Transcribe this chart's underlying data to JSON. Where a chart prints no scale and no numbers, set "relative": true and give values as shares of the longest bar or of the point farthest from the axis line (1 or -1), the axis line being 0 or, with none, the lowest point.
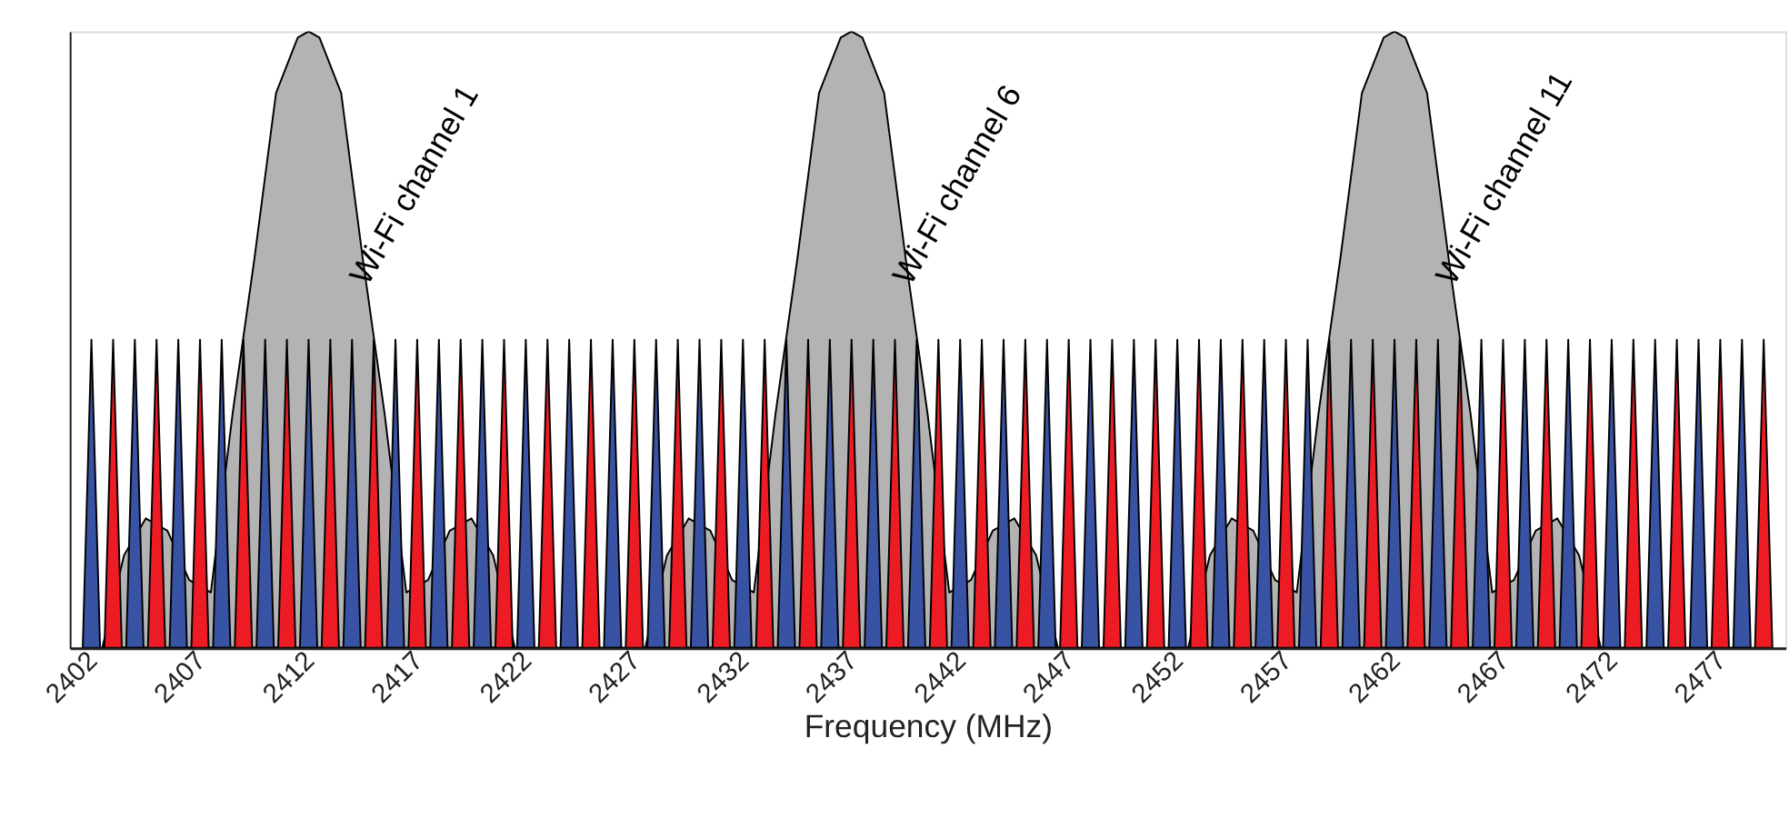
{
  "chart_data": {
    "type": "area",
    "relative": true,
    "xlabel": "Frequency (MHz)",
    "xlim": [
      2401,
      2480
    ],
    "xticks": [
      2402,
      2407,
      2412,
      2417,
      2422,
      2427,
      2432,
      2437,
      2442,
      2447,
      2452,
      2457,
      2462,
      2467,
      2472,
      2477
    ],
    "grid": false,
    "tick_labels": "x",
    "annotations": [
      {
        "text": "Wi-Fi channel 1",
        "x": 2415,
        "y": 0.58
      },
      {
        "text": "Wi-Fi channel 6",
        "x": 2440,
        "y": 0.58
      },
      {
        "text": "Wi-Fi channel 11",
        "x": 2465,
        "y": 0.58
      }
    ],
    "series": [
      {
        "color": "#b3b3b3",
        "x": [
          2402.5,
          2403.5,
          2404.5,
          2405.5,
          2406.5,
          2407.5,
          2408.5,
          2409.5,
          2410.5,
          2411.5,
          2412,
          2412.5,
          2413.5,
          2414.5,
          2415.5,
          2416.5,
          2417.5,
          2418.5,
          2419.5,
          2420.5,
          2421.5
        ],
        "values": [
          0,
          0.15,
          0.21,
          0.19,
          0.11,
          0.09,
          0.38,
          0.63,
          0.9,
          0.99,
          1,
          0.99,
          0.9,
          0.63,
          0.38,
          0.09,
          0.11,
          0.19,
          0.21,
          0.15,
          0
        ]
      },
      {
        "color": "#b3b3b3",
        "x": [
          2427.5,
          2428.5,
          2429.5,
          2430.5,
          2431.5,
          2432.5,
          2433.5,
          2434.5,
          2435.5,
          2436.5,
          2437,
          2437.5,
          2438.5,
          2439.5,
          2440.5,
          2441.5,
          2442.5,
          2443.5,
          2444.5,
          2445.5,
          2446.5
        ],
        "values": [
          0,
          0.15,
          0.21,
          0.19,
          0.11,
          0.09,
          0.38,
          0.63,
          0.9,
          0.99,
          1,
          0.99,
          0.9,
          0.63,
          0.38,
          0.09,
          0.11,
          0.19,
          0.21,
          0.15,
          0
        ]
      },
      {
        "color": "#b3b3b3",
        "x": [
          2452.5,
          2453.5,
          2454.5,
          2455.5,
          2456.5,
          2457.5,
          2458.5,
          2459.5,
          2460.5,
          2461.5,
          2462,
          2462.5,
          2463.5,
          2464.5,
          2465.5,
          2466.5,
          2467.5,
          2468.5,
          2469.5,
          2470.5,
          2471.5
        ],
        "values": [
          0,
          0.15,
          0.21,
          0.19,
          0.11,
          0.09,
          0.38,
          0.63,
          0.9,
          0.99,
          1,
          0.99,
          0.9,
          0.63,
          0.38,
          0.09,
          0.11,
          0.19,
          0.21,
          0.15,
          0
        ]
      },
      {
        "color": "#3953a4",
        "x": [
          2401.6,
          2402,
          2402.4,
          2403.6,
          2404,
          2404.4,
          2405.6,
          2406,
          2406.4,
          2407.6,
          2408,
          2408.4,
          2409.6,
          2410,
          2410.4,
          2411.6,
          2412,
          2412.4,
          2413.6,
          2414,
          2414.4,
          2415.6,
          2416,
          2416.4,
          2417.6,
          2418,
          2418.4,
          2419.6,
          2420,
          2420.4,
          2421.6,
          2422,
          2422.4,
          2423.6,
          2424,
          2424.4,
          2425.6,
          2426,
          2426.4,
          2427.6,
          2428,
          2428.4,
          2429.6,
          2430,
          2430.4,
          2431.6,
          2432,
          2432.4,
          2433.6,
          2434,
          2434.4,
          2435.6,
          2436,
          2436.4,
          2437.6,
          2438,
          2438.4,
          2439.6,
          2440,
          2440.4,
          2441.6,
          2442,
          2442.4,
          2443.6,
          2444,
          2444.4,
          2445.6,
          2446,
          2446.4,
          2447.6,
          2448,
          2448.4,
          2449.6,
          2450,
          2450.4,
          2451.6,
          2452,
          2452.4,
          2453.6,
          2454,
          2454.4,
          2455.6,
          2456,
          2456.4,
          2457.6,
          2458,
          2458.4,
          2459.6,
          2460,
          2460.4,
          2461.6,
          2462,
          2462.4,
          2463.6,
          2464,
          2464.4,
          2465.6,
          2466,
          2466.4,
          2467.6,
          2468,
          2468.4,
          2469.6,
          2470,
          2470.4,
          2471.6,
          2472,
          2472.4,
          2473.6,
          2474,
          2474.4,
          2475.6,
          2476,
          2476.4,
          2477.6,
          2478,
          2478.4
        ],
        "values": [
          0,
          0.5,
          0,
          0,
          0.5,
          0,
          0,
          0.5,
          0,
          0,
          0.5,
          0,
          0,
          0.5,
          0,
          0,
          0.5,
          0,
          0,
          0.5,
          0,
          0,
          0.5,
          0,
          0,
          0.5,
          0,
          0,
          0.5,
          0,
          0,
          0.5,
          0,
          0,
          0.5,
          0,
          0,
          0.5,
          0,
          0,
          0.5,
          0,
          0,
          0.5,
          0,
          0,
          0.5,
          0,
          0,
          0.5,
          0,
          0,
          0.5,
          0,
          0,
          0.5,
          0,
          0,
          0.5,
          0,
          0,
          0.5,
          0,
          0,
          0.5,
          0,
          0,
          0.5,
          0,
          0,
          0.5,
          0,
          0,
          0.5,
          0,
          0,
          0.5,
          0,
          0,
          0.5,
          0,
          0,
          0.5,
          0,
          0,
          0.5,
          0,
          0,
          0.5,
          0,
          0,
          0.5,
          0,
          0,
          0.5,
          0,
          0,
          0.5,
          0,
          0,
          0.5,
          0,
          0,
          0.5,
          0,
          0,
          0.5,
          0,
          0,
          0.5,
          0,
          0,
          0.5,
          0,
          0,
          0.5,
          0
        ]
      },
      {
        "color": "#ed1c24",
        "x": [
          2402.6,
          2403,
          2403.4,
          2404.6,
          2405,
          2405.4,
          2406.6,
          2407,
          2407.4,
          2408.6,
          2409,
          2409.4,
          2410.6,
          2411,
          2411.4,
          2412.6,
          2413,
          2413.4,
          2414.6,
          2415,
          2415.4,
          2416.6,
          2417,
          2417.4,
          2418.6,
          2419,
          2419.4,
          2420.6,
          2421,
          2421.4,
          2422.6,
          2423,
          2423.4,
          2424.6,
          2425,
          2425.4,
          2426.6,
          2427,
          2427.4,
          2428.6,
          2429,
          2429.4,
          2430.6,
          2431,
          2431.4,
          2432.6,
          2433,
          2433.4,
          2434.6,
          2435,
          2435.4,
          2436.6,
          2437,
          2437.4,
          2438.6,
          2439,
          2439.4,
          2440.6,
          2441,
          2441.4,
          2442.6,
          2443,
          2443.4,
          2444.6,
          2445,
          2445.4,
          2446.6,
          2447,
          2447.4,
          2448.6,
          2449,
          2449.4,
          2450.6,
          2451,
          2451.4,
          2452.6,
          2453,
          2453.4,
          2454.6,
          2455,
          2455.4,
          2456.6,
          2457,
          2457.4,
          2458.6,
          2459,
          2459.4,
          2460.6,
          2461,
          2461.4,
          2462.6,
          2463,
          2463.4,
          2464.6,
          2465,
          2465.4,
          2466.6,
          2467,
          2467.4,
          2468.6,
          2469,
          2469.4,
          2470.6,
          2471,
          2471.4,
          2472.6,
          2473,
          2473.4,
          2474.6,
          2475,
          2475.4,
          2476.6,
          2477,
          2477.4,
          2478.6,
          2479,
          2479.4
        ],
        "values": [
          0,
          0.5,
          0,
          0,
          0.5,
          0,
          0,
          0.5,
          0,
          0,
          0.5,
          0,
          0,
          0.5,
          0,
          0,
          0.5,
          0,
          0,
          0.5,
          0,
          0,
          0.5,
          0,
          0,
          0.5,
          0,
          0,
          0.5,
          0,
          0,
          0.5,
          0,
          0,
          0.5,
          0,
          0,
          0.5,
          0,
          0,
          0.5,
          0,
          0,
          0.5,
          0,
          0,
          0.5,
          0,
          0,
          0.5,
          0,
          0,
          0.5,
          0,
          0,
          0.5,
          0,
          0,
          0.5,
          0,
          0,
          0.5,
          0,
          0,
          0.5,
          0,
          0,
          0.5,
          0,
          0,
          0.5,
          0,
          0,
          0.5,
          0,
          0,
          0.5,
          0,
          0,
          0.5,
          0,
          0,
          0.5,
          0,
          0,
          0.5,
          0,
          0,
          0.5,
          0,
          0,
          0.5,
          0,
          0,
          0.5,
          0,
          0,
          0.5,
          0,
          0,
          0.5,
          0,
          0,
          0.5,
          0,
          0,
          0.5,
          0,
          0,
          0.5,
          0,
          0,
          0.5,
          0,
          0,
          0.5,
          0
        ]
      }
    ]
  }
}
